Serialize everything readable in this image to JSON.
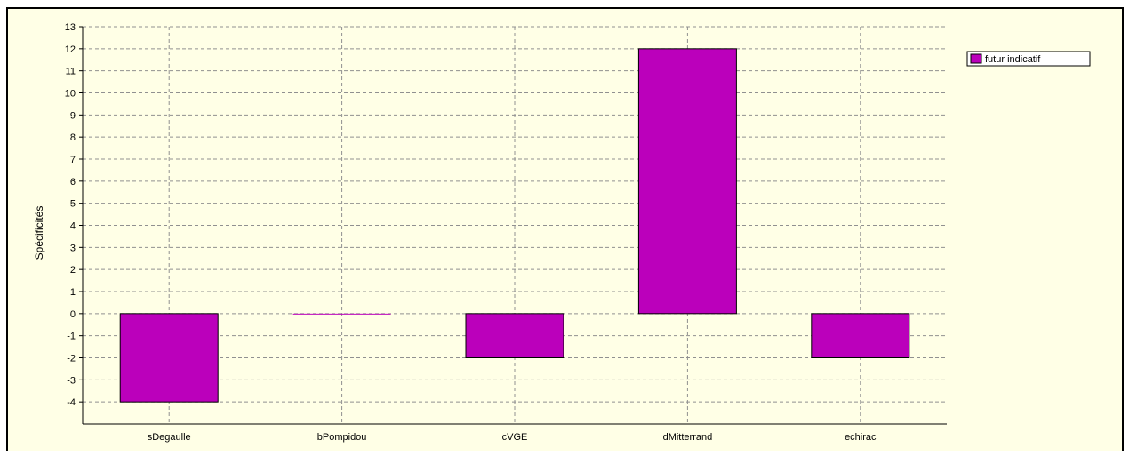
{
  "chart_data": {
    "type": "bar",
    "categories": [
      "sDegaulle",
      "bPompidou",
      "cVGE",
      "dMitterrand",
      "echirac"
    ],
    "series": [
      {
        "name": "futur indicatif",
        "values": [
          -4,
          0,
          -2,
          12,
          -2
        ]
      }
    ],
    "ylabel": "Spécificités",
    "xlabel": "",
    "ylim": [
      -5,
      13
    ],
    "yticks": [
      13,
      12,
      11,
      10,
      9,
      8,
      7,
      6,
      5,
      4,
      3,
      2,
      1,
      0,
      -1,
      -2,
      -3,
      -4
    ],
    "grid": true,
    "legend_position": "top-right",
    "colors": {
      "bar": "#bb00bb",
      "plot_background": "#ffffe6",
      "grid": "#909090"
    }
  }
}
